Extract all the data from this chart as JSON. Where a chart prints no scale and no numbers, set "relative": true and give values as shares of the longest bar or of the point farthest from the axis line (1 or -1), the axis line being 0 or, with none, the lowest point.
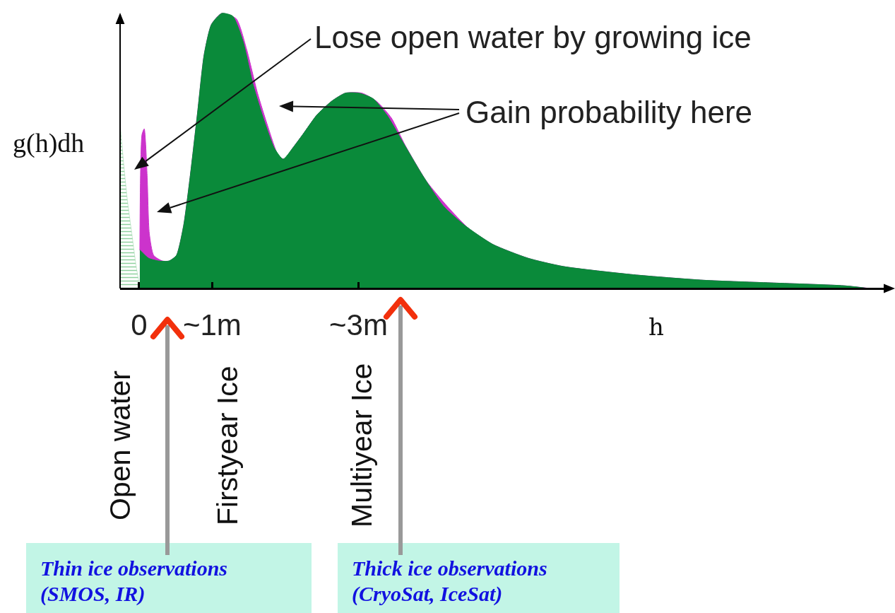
{
  "chart_data": {
    "type": "area",
    "relative": true,
    "xlabel": "h",
    "ylabel": "g(h)dh",
    "xlim": [
      -0.26,
      10.29
    ],
    "xticks": [
      0,
      {
        "value": 1,
        "label": "~1m"
      },
      {
        "value": 3,
        "label": "~3m"
      }
    ],
    "grid": false,
    "series": [
      {
        "color": "#8fd19e",
        "x": [
          -0.26,
          -0.21,
          -0.16,
          -0.1,
          -0.04,
          0
        ],
        "values": [
          0.6,
          0.45,
          0.32,
          0.2,
          0.08,
          0.02
        ]
      },
      {
        "color": "#cc33cc",
        "x": [
          0.01,
          0.04,
          0.07,
          0.11,
          0.14,
          0.2,
          0.32,
          0.41,
          0.51,
          0.61,
          0.7,
          0.8,
          0.89,
          0.99,
          1.13,
          1.33,
          1.47,
          1.62,
          1.76,
          1.91,
          1.99,
          2.1,
          2.24,
          2.43,
          2.63,
          2.82,
          3.05,
          3.25,
          3.45,
          3.64,
          3.93,
          4.21,
          4.5,
          4.84,
          5.32,
          5.8,
          6.76,
          7.72,
          8.68,
          9.64,
          10.0
        ],
        "values": [
          0.14,
          0.56,
          0.58,
          0.41,
          0.2,
          0.12,
          0.1,
          0.1,
          0.12,
          0.23,
          0.41,
          0.64,
          0.85,
          0.96,
          1.0,
          0.98,
          0.87,
          0.71,
          0.59,
          0.48,
          0.47,
          0.51,
          0.56,
          0.63,
          0.68,
          0.71,
          0.71,
          0.68,
          0.62,
          0.52,
          0.39,
          0.3,
          0.22,
          0.16,
          0.11,
          0.08,
          0.05,
          0.03,
          0.02,
          0.01,
          0
        ]
      },
      {
        "color": "#0a8a3a",
        "x": [
          0.01,
          0.13,
          0.27,
          0.41,
          0.51,
          0.61,
          0.7,
          0.8,
          0.89,
          0.99,
          1.13,
          1.28,
          1.42,
          1.56,
          1.71,
          1.85,
          1.97,
          2.1,
          2.24,
          2.43,
          2.63,
          2.82,
          3.01,
          3.2,
          3.39,
          3.59,
          3.88,
          4.16,
          4.45,
          4.84,
          5.32,
          5.8,
          6.76,
          7.72,
          8.68,
          9.64,
          9.98
        ],
        "values": [
          0.14,
          0.11,
          0.1,
          0.1,
          0.12,
          0.23,
          0.41,
          0.64,
          0.85,
          0.96,
          1.0,
          0.99,
          0.9,
          0.74,
          0.61,
          0.51,
          0.47,
          0.51,
          0.56,
          0.63,
          0.68,
          0.71,
          0.71,
          0.69,
          0.63,
          0.54,
          0.41,
          0.3,
          0.23,
          0.16,
          0.11,
          0.08,
          0.05,
          0.03,
          0.02,
          0.01,
          0
        ]
      }
    ],
    "annotations": [
      "Lose open water by growing ice",
      "Gain probability here",
      "Open water",
      "Firstyear Ice",
      "Multiyear Ice",
      "Thin ice observations\n(SMOS, IR)",
      "Thick ice observations\n(CryoSat, IceSat)"
    ]
  }
}
